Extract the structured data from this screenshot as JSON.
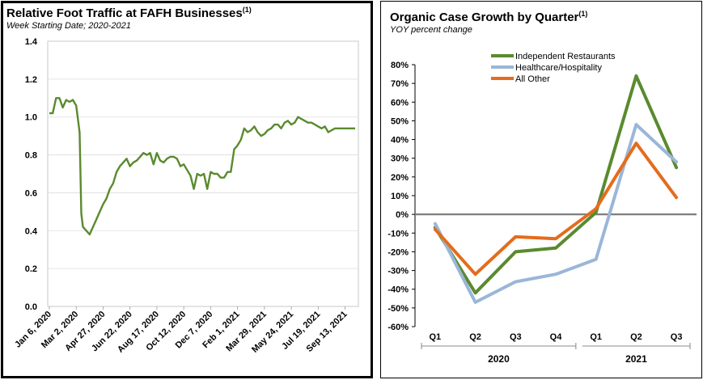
{
  "chart_data": [
    {
      "type": "line",
      "title": "Relative Foot Traffic at FAFH Businesses",
      "title_note": "(1)",
      "subtitle": "Week Starting Date; 2020-2021",
      "ylim": [
        0,
        1.4
      ],
      "yticks": [
        "0.0",
        "0.2",
        "0.4",
        "0.6",
        "0.8",
        "1.0",
        "1.2",
        "1.4"
      ],
      "xticks": [
        "Jan 6, 2020",
        "Mar 2, 2020",
        "Apr 27, 2020",
        "Jun 22, 2020",
        "Aug 17, 2020",
        "Oct 12, 2020",
        "Dec 7, 2020",
        "Feb 1, 2021",
        "Mar 29, 2021",
        "May 24, 2021",
        "Jul 19, 2021",
        "Sep 13, 2021"
      ],
      "x_weeks": [
        0,
        1,
        2,
        3,
        4,
        5,
        6,
        7,
        8,
        9,
        9.5,
        10,
        11,
        12,
        13,
        14,
        15,
        16,
        17,
        18,
        19,
        20,
        21,
        22,
        23,
        24,
        25,
        26,
        27,
        28,
        29,
        30,
        31,
        32,
        33,
        34,
        35,
        36,
        37,
        38,
        39,
        40,
        41,
        42,
        43,
        44,
        45,
        46,
        47,
        48,
        49,
        50,
        51,
        52,
        53,
        54,
        55,
        56,
        57,
        58,
        59,
        60,
        61,
        62,
        63,
        64,
        65,
        66,
        67,
        68,
        69,
        70,
        71,
        72,
        73,
        74,
        75,
        76,
        77,
        78,
        79,
        80,
        81,
        82,
        83,
        84,
        85,
        86,
        87,
        88,
        89,
        90,
        91
      ],
      "color": "#5a8a2e",
      "values": [
        1.02,
        1.02,
        1.1,
        1.1,
        1.05,
        1.09,
        1.08,
        1.09,
        1.06,
        0.92,
        0.49,
        0.42,
        0.4,
        0.38,
        0.42,
        0.46,
        0.5,
        0.54,
        0.57,
        0.62,
        0.65,
        0.71,
        0.74,
        0.76,
        0.78,
        0.74,
        0.76,
        0.77,
        0.79,
        0.81,
        0.8,
        0.81,
        0.75,
        0.81,
        0.77,
        0.76,
        0.78,
        0.79,
        0.79,
        0.78,
        0.74,
        0.75,
        0.72,
        0.69,
        0.62,
        0.7,
        0.69,
        0.7,
        0.62,
        0.71,
        0.7,
        0.7,
        0.68,
        0.68,
        0.71,
        0.71,
        0.83,
        0.85,
        0.88,
        0.94,
        0.92,
        0.93,
        0.95,
        0.92,
        0.9,
        0.91,
        0.93,
        0.94,
        0.96,
        0.96,
        0.94,
        0.97,
        0.98,
        0.96,
        0.97,
        1.0,
        0.99,
        0.98,
        0.97,
        0.97,
        0.96,
        0.95,
        0.94,
        0.95,
        0.92,
        0.93,
        0.94,
        0.94,
        0.94,
        0.94,
        0.94,
        0.94,
        0.94
      ]
    },
    {
      "type": "line",
      "title": "Organic Case Growth by Quarter",
      "title_note": "(1)",
      "subtitle": "YOY percent change",
      "ylim": [
        -60,
        80
      ],
      "yticks": [
        "-60%",
        "-50%",
        "-40%",
        "-30%",
        "-20%",
        "-10%",
        "0%",
        "10%",
        "20%",
        "30%",
        "40%",
        "50%",
        "60%",
        "70%",
        "80%"
      ],
      "categories": [
        "Q1",
        "Q2",
        "Q3",
        "Q4",
        "Q1",
        "Q2",
        "Q3"
      ],
      "groups": [
        {
          "label": "2020",
          "count": 4
        },
        {
          "label": "2021",
          "count": 3
        }
      ],
      "legend_position": "top-center",
      "series": [
        {
          "name": "Independent Restaurants",
          "color": "#5a8a2e",
          "values": [
            -7,
            -42,
            -20,
            -18,
            1,
            74,
            25
          ]
        },
        {
          "name": "Healthcare/Hospitality",
          "color": "#9ab6d8",
          "values": [
            -5,
            -47,
            -36,
            -32,
            -24,
            48,
            28
          ]
        },
        {
          "name": "All Other",
          "color": "#e46c1e",
          "values": [
            -8,
            -32,
            -12,
            -13,
            3,
            38,
            9
          ]
        }
      ]
    }
  ]
}
